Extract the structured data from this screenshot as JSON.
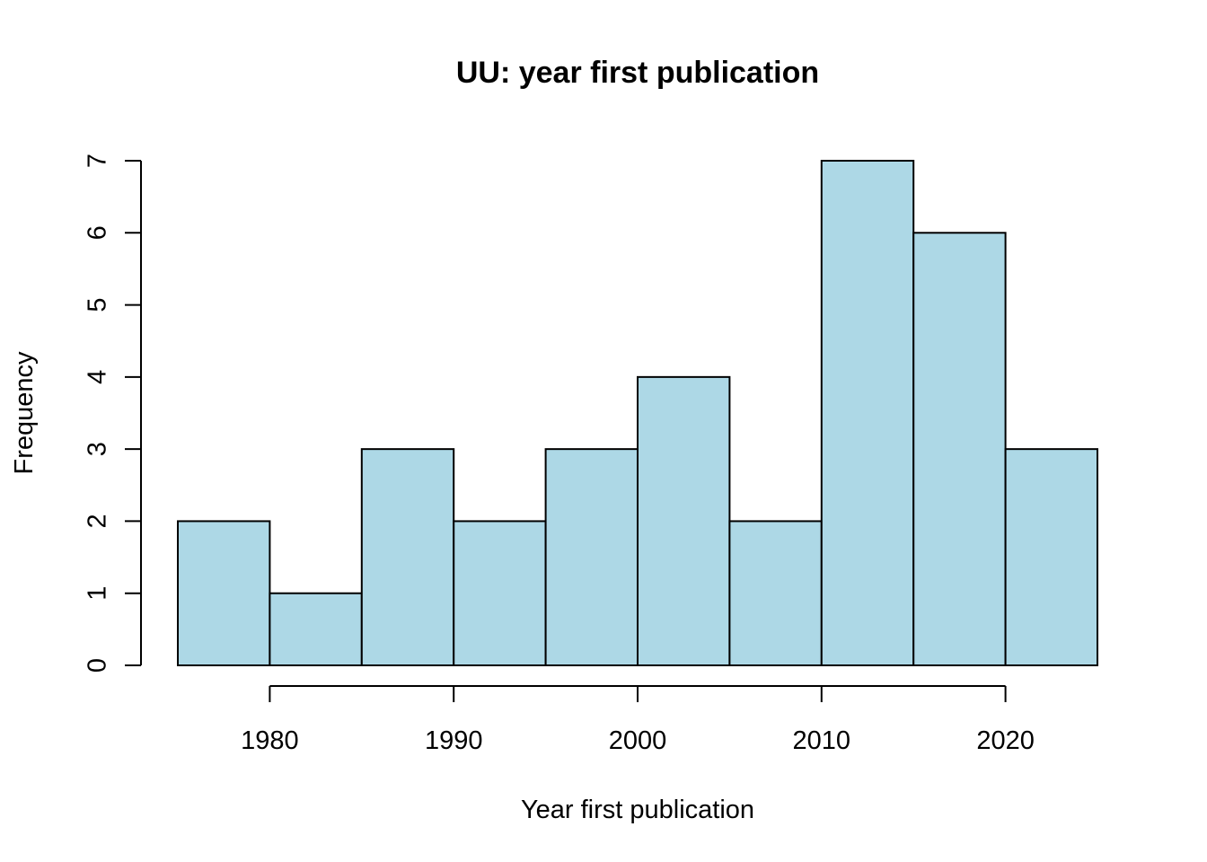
{
  "chart_data": {
    "type": "bar",
    "subtype": "histogram",
    "title": "UU: year first publication",
    "xlabel": "Year first publication",
    "ylabel": "Frequency",
    "bins": [
      {
        "from": 1975,
        "to": 1980,
        "count": 2
      },
      {
        "from": 1980,
        "to": 1985,
        "count": 1
      },
      {
        "from": 1985,
        "to": 1990,
        "count": 3
      },
      {
        "from": 1990,
        "to": 1995,
        "count": 2
      },
      {
        "from": 1995,
        "to": 2000,
        "count": 3
      },
      {
        "from": 2000,
        "to": 2005,
        "count": 4
      },
      {
        "from": 2005,
        "to": 2010,
        "count": 2
      },
      {
        "from": 2010,
        "to": 2015,
        "count": 7
      },
      {
        "from": 2015,
        "to": 2020,
        "count": 6
      },
      {
        "from": 2020,
        "to": 2025,
        "count": 3
      }
    ],
    "x_ticks": [
      1980,
      1990,
      2000,
      2010,
      2020
    ],
    "y_ticks": [
      0,
      1,
      2,
      3,
      4,
      5,
      6,
      7
    ],
    "xlim": [
      1975,
      2025
    ],
    "ylim": [
      0,
      7
    ],
    "grid": false,
    "legend": "none",
    "bar_color": "#add8e6",
    "border_color": "#000000"
  }
}
